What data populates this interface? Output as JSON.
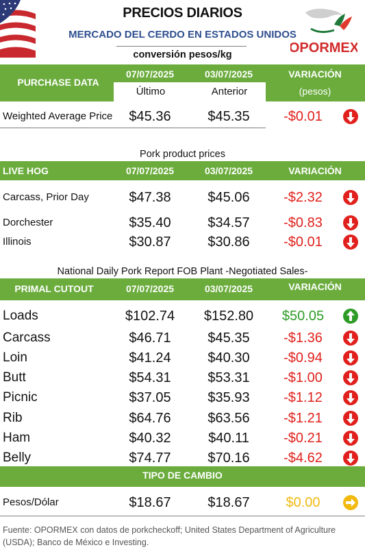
{
  "header": {
    "title": "PRECIOS DIARIOS",
    "subtitle": "MERCADO DEL CERDO EN ESTADOS UNIDOS",
    "unit_note": "conversión pesos/kg",
    "logo_text": "OPORMEX"
  },
  "purchase": {
    "label": "PURCHASE DATA",
    "date1": "07/07/2025",
    "date2": "03/07/2025",
    "var_label": "VARIACIÓN",
    "sub1": "Último",
    "sub2": "Anterior",
    "sub3": "(pesos)",
    "rows": [
      {
        "label": "Weighted Average Price",
        "v1": "$45.36",
        "v2": "$45.35",
        "var": "-$0.01",
        "trend": "down"
      }
    ]
  },
  "pork_products": {
    "section_title": "Pork product prices",
    "label": "LIVE HOG",
    "date1": "07/07/2025",
    "date2": "03/07/2025",
    "var_label": "VARIACIÓN",
    "rows": [
      {
        "label": "Carcass, Prior Day",
        "v1": "$47.38",
        "v2": "$45.06",
        "var": "-$2.32",
        "trend": "down"
      },
      {
        "label": "Dorchester",
        "v1": "$35.40",
        "v2": "$34.57",
        "var": "-$0.83",
        "trend": "down"
      },
      {
        "label": "Illinois",
        "v1": "$30.87",
        "v2": "$30.86",
        "var": "-$0.01",
        "trend": "down"
      }
    ]
  },
  "primal": {
    "section_title": "National Daily Pork Report FOB Plant -Negotiated Sales-",
    "label": "PRIMAL CUTOUT",
    "date1": "07/07/2025",
    "date2": "03/07/2025",
    "var_label": "VARIACIÓN",
    "rows": [
      {
        "label": "Loads",
        "v1": "$102.74",
        "v2": "$152.80",
        "var": "$50.05",
        "trend": "up"
      },
      {
        "label": "Carcass",
        "v1": "$46.71",
        "v2": "$45.35",
        "var": "-$1.36",
        "trend": "down"
      },
      {
        "label": "Loin",
        "v1": "$41.24",
        "v2": "$40.30",
        "var": "-$0.94",
        "trend": "down"
      },
      {
        "label": "Butt",
        "v1": "$54.31",
        "v2": "$53.31",
        "var": "-$1.00",
        "trend": "down"
      },
      {
        "label": "Picnic",
        "v1": "$37.05",
        "v2": "$35.93",
        "var": "-$1.12",
        "trend": "down"
      },
      {
        "label": "Rib",
        "v1": "$64.76",
        "v2": "$63.56",
        "var": "-$1.21",
        "trend": "down"
      },
      {
        "label": "Ham",
        "v1": "$40.32",
        "v2": "$40.11",
        "var": "-$0.21",
        "trend": "down"
      },
      {
        "label": "Belly",
        "v1": "$74.77",
        "v2": "$70.16",
        "var": "-$4.62",
        "trend": "down"
      }
    ]
  },
  "exchange": {
    "label": "TIPO DE CAMBIO",
    "rows": [
      {
        "label": "Pesos/Dólar",
        "v1": "$18.67",
        "v2": "$18.67",
        "var": "$0.00",
        "trend": "flat"
      }
    ]
  },
  "footer": "Fuente: OPORMEX con datos de porkcheckoff; United States Department of Agriculture (USDA); Banco de México e Investing.",
  "colors": {
    "header_green": "#6bac3d",
    "down_red": "#e0201c",
    "up_green": "#2e9b26",
    "flat_yellow": "#f2b90f",
    "subtitle_blue": "#2f4f8f"
  }
}
